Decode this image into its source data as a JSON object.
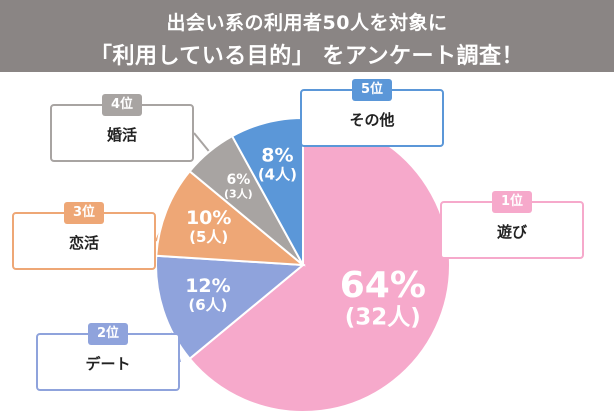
{
  "header": {
    "line1": "出会い系の利用者50人を対象に",
    "line2": "「利用している目的」 をアンケート調査！",
    "bg_color": "#8a8584"
  },
  "chart_data": {
    "type": "pie",
    "title": "出会い系の利用者50人を対象に「利用している目的」をアンケート調査！",
    "total_respondents": 50,
    "slices": [
      {
        "rank": "1位",
        "label": "遊び",
        "percent": 64,
        "count": 32,
        "percent_text": "64%",
        "count_text": "(32人)",
        "color": "#f6a9cb"
      },
      {
        "rank": "2位",
        "label": "デート",
        "percent": 12,
        "count": 6,
        "percent_text": "12%",
        "count_text": "(6人)",
        "color": "#8fa3dc"
      },
      {
        "rank": "3位",
        "label": "恋活",
        "percent": 10,
        "count": 5,
        "percent_text": "10%",
        "count_text": "(5人)",
        "color": "#eea776"
      },
      {
        "rank": "4位",
        "label": "婚活",
        "percent": 6,
        "count": 3,
        "percent_text": "6%",
        "count_text": "(3人)",
        "color": "#a8a4a2"
      },
      {
        "rank": "5位",
        "label": "その他",
        "percent": 8,
        "count": 4,
        "percent_text": "8%",
        "count_text": "(4人)",
        "color": "#5b97d8"
      }
    ]
  }
}
